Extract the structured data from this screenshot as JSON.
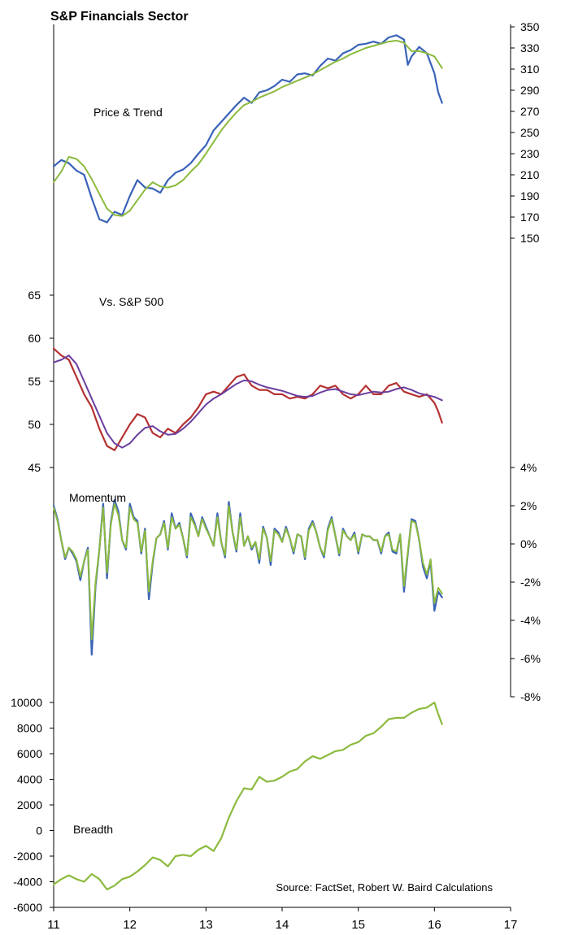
{
  "title": "S&P Financials Sector",
  "source": "Source: FactSet, Robert W. Baird Calculations",
  "colors": {
    "price": "#3a63b8",
    "price_trend": "#8cba3e",
    "relative": "#b53232",
    "relative_trend": "#6a3fa0",
    "momentum_fast": "#3a63b8",
    "momentum_slow": "#8cba3e",
    "breadth": "#8cba3e",
    "axis": "#000000"
  },
  "x_axis": {
    "ticks": [
      "11",
      "12",
      "13",
      "14",
      "15",
      "16",
      "17"
    ],
    "range": [
      11,
      17
    ]
  },
  "chart_data": [
    {
      "type": "line",
      "label": "Price & Trend",
      "y_axis_side": "right",
      "ylim": [
        150,
        350
      ],
      "yticks": [
        "150",
        "170",
        "190",
        "210",
        "230",
        "250",
        "270",
        "290",
        "310",
        "330",
        "350"
      ],
      "series": [
        {
          "role": "price",
          "x": [
            11.0,
            11.1,
            11.2,
            11.3,
            11.4,
            11.5,
            11.6,
            11.7,
            11.8,
            11.9,
            12.0,
            12.1,
            12.2,
            12.3,
            12.4,
            12.5,
            12.6,
            12.7,
            12.8,
            12.9,
            13.0,
            13.1,
            13.2,
            13.3,
            13.4,
            13.5,
            13.6,
            13.7,
            13.8,
            13.9,
            14.0,
            14.1,
            14.2,
            14.3,
            14.4,
            14.5,
            14.6,
            14.7,
            14.8,
            14.9,
            15.0,
            15.1,
            15.2,
            15.3,
            15.4,
            15.5,
            15.6,
            15.65,
            15.7,
            15.8,
            15.9,
            16.0,
            16.05,
            16.1
          ],
          "values": [
            218,
            224,
            221,
            214,
            210,
            188,
            168,
            165,
            175,
            172,
            190,
            205,
            198,
            197,
            193,
            205,
            212,
            215,
            221,
            230,
            238,
            252,
            260,
            268,
            276,
            283,
            278,
            288,
            290,
            294,
            300,
            298,
            305,
            306,
            304,
            313,
            320,
            318,
            325,
            328,
            333,
            334,
            336,
            334,
            340,
            342,
            338,
            314,
            322,
            331,
            325,
            306,
            288,
            278
          ]
        },
        {
          "role": "trend",
          "x": [
            11.0,
            11.1,
            11.2,
            11.3,
            11.4,
            11.5,
            11.6,
            11.7,
            11.8,
            11.9,
            12.0,
            12.1,
            12.2,
            12.3,
            12.4,
            12.5,
            12.6,
            12.7,
            12.8,
            12.9,
            13.0,
            13.1,
            13.2,
            13.3,
            13.4,
            13.5,
            13.6,
            13.7,
            13.8,
            13.9,
            14.0,
            14.1,
            14.2,
            14.3,
            14.4,
            14.5,
            14.6,
            14.7,
            14.8,
            14.9,
            15.0,
            15.1,
            15.2,
            15.3,
            15.4,
            15.5,
            15.6,
            15.7,
            15.8,
            15.9,
            16.0,
            16.1
          ],
          "values": [
            203,
            213,
            227,
            225,
            218,
            206,
            192,
            178,
            172,
            171,
            176,
            186,
            196,
            203,
            199,
            198,
            200,
            205,
            213,
            220,
            230,
            241,
            252,
            261,
            269,
            276,
            279,
            283,
            286,
            289,
            293,
            296,
            299,
            302,
            305,
            309,
            313,
            317,
            320,
            324,
            327,
            330,
            332,
            334,
            336,
            337,
            335,
            327,
            327,
            325,
            322,
            311
          ]
        }
      ]
    },
    {
      "type": "line",
      "label": "Vs. S&P 500",
      "y_axis_side": "left",
      "ylim": [
        45,
        65
      ],
      "yticks": [
        "45",
        "50",
        "55",
        "60",
        "65"
      ],
      "series": [
        {
          "role": "relative",
          "x": [
            11.0,
            11.1,
            11.2,
            11.3,
            11.4,
            11.5,
            11.6,
            11.7,
            11.8,
            11.9,
            12.0,
            12.1,
            12.2,
            12.3,
            12.4,
            12.5,
            12.6,
            12.7,
            12.8,
            12.9,
            13.0,
            13.1,
            13.2,
            13.3,
            13.4,
            13.5,
            13.6,
            13.7,
            13.8,
            13.9,
            14.0,
            14.1,
            14.2,
            14.3,
            14.4,
            14.5,
            14.6,
            14.7,
            14.8,
            14.9,
            15.0,
            15.1,
            15.2,
            15.3,
            15.4,
            15.5,
            15.6,
            15.7,
            15.8,
            15.9,
            16.0,
            16.05,
            16.1
          ],
          "values": [
            58.8,
            58.0,
            57.5,
            55.5,
            53.5,
            52.0,
            49.5,
            47.5,
            47.0,
            48.5,
            50.0,
            51.2,
            50.8,
            49.0,
            48.5,
            49.5,
            49.0,
            50.0,
            50.8,
            52.0,
            53.5,
            53.8,
            53.5,
            54.5,
            55.5,
            55.8,
            54.5,
            54.0,
            54.0,
            53.5,
            53.5,
            53.0,
            53.2,
            53.0,
            53.5,
            54.5,
            54.2,
            54.5,
            53.5,
            53.0,
            53.5,
            54.5,
            53.5,
            53.5,
            54.5,
            54.8,
            53.8,
            53.5,
            53.2,
            53.5,
            52.5,
            51.5,
            50.2
          ]
        },
        {
          "role": "trend",
          "x": [
            11.0,
            11.1,
            11.2,
            11.3,
            11.4,
            11.5,
            11.6,
            11.7,
            11.8,
            11.9,
            12.0,
            12.1,
            12.2,
            12.3,
            12.4,
            12.5,
            12.6,
            12.7,
            12.8,
            12.9,
            13.0,
            13.1,
            13.2,
            13.3,
            13.4,
            13.5,
            13.6,
            13.7,
            13.8,
            13.9,
            14.0,
            14.1,
            14.2,
            14.3,
            14.4,
            14.5,
            14.6,
            14.7,
            14.8,
            14.9,
            15.0,
            15.1,
            15.2,
            15.3,
            15.4,
            15.5,
            15.6,
            15.7,
            15.8,
            15.9,
            16.0,
            16.1
          ],
          "values": [
            57.2,
            57.5,
            58.0,
            57.0,
            55.0,
            53.0,
            51.0,
            49.0,
            47.8,
            47.3,
            47.8,
            48.8,
            49.6,
            49.8,
            49.2,
            48.8,
            48.9,
            49.5,
            50.3,
            51.3,
            52.3,
            53.0,
            53.5,
            54.1,
            54.7,
            55.1,
            55.0,
            54.6,
            54.3,
            54.1,
            53.9,
            53.6,
            53.3,
            53.2,
            53.3,
            53.7,
            54.0,
            54.1,
            53.8,
            53.5,
            53.4,
            53.6,
            53.8,
            53.7,
            53.8,
            54.1,
            54.3,
            54.0,
            53.6,
            53.4,
            53.2,
            52.8
          ]
        }
      ]
    },
    {
      "type": "line",
      "label": "Momentum",
      "y_axis_side": "right",
      "ylim": [
        -8,
        4
      ],
      "yticks": [
        "-8%",
        "-6%",
        "-4%",
        "-2%",
        "0%",
        "2%",
        "4%"
      ],
      "series": [
        {
          "role": "fast",
          "x": [
            11.0,
            11.05,
            11.1,
            11.15,
            11.2,
            11.25,
            11.3,
            11.35,
            11.4,
            11.45,
            11.5,
            11.55,
            11.6,
            11.65,
            11.7,
            11.75,
            11.8,
            11.85,
            11.9,
            11.95,
            12.0,
            12.05,
            12.1,
            12.15,
            12.2,
            12.25,
            12.3,
            12.35,
            12.4,
            12.45,
            12.5,
            12.55,
            12.6,
            12.65,
            12.7,
            12.75,
            12.8,
            12.85,
            12.9,
            12.95,
            13.0,
            13.05,
            13.1,
            13.15,
            13.2,
            13.25,
            13.3,
            13.35,
            13.4,
            13.45,
            13.5,
            13.55,
            13.6,
            13.65,
            13.7,
            13.75,
            13.8,
            13.85,
            13.9,
            13.95,
            14.0,
            14.05,
            14.1,
            14.15,
            14.2,
            14.25,
            14.3,
            14.35,
            14.4,
            14.45,
            14.5,
            14.55,
            14.6,
            14.65,
            14.7,
            14.75,
            14.8,
            14.85,
            14.9,
            14.95,
            15.0,
            15.05,
            15.1,
            15.15,
            15.2,
            15.25,
            15.3,
            15.35,
            15.4,
            15.45,
            15.5,
            15.55,
            15.6,
            15.65,
            15.7,
            15.75,
            15.8,
            15.85,
            15.9,
            15.95,
            16.0,
            16.05,
            16.1
          ],
          "values": [
            2.0,
            1.3,
            0.2,
            -0.8,
            -0.2,
            -0.5,
            -0.9,
            -1.9,
            -0.9,
            -0.2,
            -5.8,
            -2.2,
            -0.3,
            2.1,
            -1.8,
            1.1,
            2.3,
            1.7,
            0.2,
            -0.3,
            2.1,
            1.4,
            1.2,
            -0.5,
            0.8,
            -2.9,
            -1.0,
            0.3,
            0.5,
            1.2,
            -0.3,
            1.6,
            0.8,
            1.1,
            0.3,
            -0.7,
            1.6,
            1.1,
            0.4,
            1.4,
            0.9,
            0.4,
            -0.1,
            1.6,
            0.1,
            -0.7,
            2.2,
            0.6,
            -0.4,
            1.6,
            -0.1,
            0.4,
            -0.3,
            0.1,
            -1.0,
            0.9,
            0.3,
            -1.1,
            0.8,
            0.6,
            0.1,
            0.9,
            0.3,
            -0.5,
            0.5,
            0.4,
            -0.8,
            0.8,
            1.2,
            0.6,
            -0.2,
            -0.7,
            0.8,
            1.4,
            0.4,
            -0.6,
            0.8,
            0.4,
            0.2,
            0.6,
            -0.5,
            0.5,
            0.4,
            0.4,
            0.2,
            0.2,
            -0.5,
            0.4,
            0.6,
            -0.4,
            -0.5,
            0.5,
            -2.5,
            -0.5,
            1.3,
            1.2,
            0.2,
            -1.2,
            -1.8,
            -0.9,
            -3.5,
            -2.5,
            -2.8
          ]
        },
        {
          "role": "slow",
          "x": [
            11.0,
            11.05,
            11.1,
            11.15,
            11.2,
            11.25,
            11.3,
            11.35,
            11.4,
            11.45,
            11.5,
            11.55,
            11.6,
            11.65,
            11.7,
            11.75,
            11.8,
            11.85,
            11.9,
            11.95,
            12.0,
            12.05,
            12.1,
            12.15,
            12.2,
            12.25,
            12.3,
            12.35,
            12.4,
            12.45,
            12.5,
            12.55,
            12.6,
            12.65,
            12.7,
            12.75,
            12.8,
            12.85,
            12.9,
            12.95,
            13.0,
            13.05,
            13.1,
            13.15,
            13.2,
            13.25,
            13.3,
            13.35,
            13.4,
            13.45,
            13.5,
            13.55,
            13.6,
            13.65,
            13.7,
            13.75,
            13.8,
            13.85,
            13.9,
            13.95,
            14.0,
            14.05,
            14.1,
            14.15,
            14.2,
            14.25,
            14.3,
            14.35,
            14.4,
            14.45,
            14.5,
            14.55,
            14.6,
            14.65,
            14.7,
            14.75,
            14.8,
            14.85,
            14.9,
            14.95,
            15.0,
            15.05,
            15.1,
            15.15,
            15.2,
            15.25,
            15.3,
            15.35,
            15.4,
            15.45,
            15.5,
            15.55,
            15.6,
            15.65,
            15.7,
            15.75,
            15.8,
            15.85,
            15.9,
            15.95,
            16.0,
            16.05,
            16.1
          ],
          "values": [
            1.9,
            1.2,
            0.2,
            -0.7,
            -0.2,
            -0.4,
            -0.8,
            -1.7,
            -0.9,
            -0.3,
            -5.0,
            -2.0,
            -0.3,
            1.9,
            -1.5,
            1.0,
            2.1,
            1.5,
            0.2,
            -0.2,
            1.9,
            1.3,
            1.1,
            -0.4,
            0.7,
            -2.5,
            -0.9,
            0.3,
            0.5,
            1.1,
            -0.2,
            1.4,
            0.8,
            1.0,
            0.3,
            -0.6,
            1.4,
            1.0,
            0.4,
            1.3,
            0.8,
            0.4,
            -0.1,
            1.4,
            0.1,
            -0.6,
            2.0,
            0.6,
            -0.3,
            1.4,
            -0.1,
            0.4,
            -0.2,
            0.1,
            -0.8,
            0.8,
            0.3,
            -0.9,
            0.7,
            0.5,
            0.1,
            0.8,
            0.3,
            -0.4,
            0.5,
            0.4,
            -0.7,
            0.7,
            1.1,
            0.6,
            -0.2,
            -0.6,
            0.7,
            1.3,
            0.4,
            -0.5,
            0.7,
            0.4,
            0.2,
            0.5,
            -0.4,
            0.5,
            0.4,
            0.4,
            0.2,
            0.2,
            -0.4,
            0.4,
            0.5,
            -0.3,
            -0.4,
            0.5,
            -2.2,
            -0.4,
            1.2,
            1.1,
            0.2,
            -1.0,
            -1.6,
            -0.8,
            -3.1,
            -2.3,
            -2.6
          ]
        }
      ]
    },
    {
      "type": "line",
      "label": "Breadth",
      "y_axis_side": "left",
      "ylim": [
        -6000,
        10000
      ],
      "yticks": [
        "-6000",
        "-4000",
        "-2000",
        "0",
        "2000",
        "4000",
        "6000",
        "8000",
        "10000"
      ],
      "series": [
        {
          "role": "breadth",
          "x": [
            11.0,
            11.1,
            11.2,
            11.3,
            11.4,
            11.5,
            11.6,
            11.7,
            11.8,
            11.9,
            12.0,
            12.1,
            12.2,
            12.3,
            12.4,
            12.5,
            12.6,
            12.7,
            12.8,
            12.9,
            13.0,
            13.1,
            13.2,
            13.3,
            13.4,
            13.5,
            13.6,
            13.7,
            13.8,
            13.9,
            14.0,
            14.1,
            14.2,
            14.3,
            14.4,
            14.5,
            14.6,
            14.7,
            14.8,
            14.9,
            15.0,
            15.1,
            15.2,
            15.3,
            15.4,
            15.5,
            15.6,
            15.7,
            15.8,
            15.9,
            16.0,
            16.05,
            16.1
          ],
          "values": [
            -4200,
            -3800,
            -3500,
            -3800,
            -4000,
            -3400,
            -3800,
            -4600,
            -4300,
            -3800,
            -3600,
            -3200,
            -2700,
            -2100,
            -2300,
            -2800,
            -2000,
            -1900,
            -2000,
            -1500,
            -1200,
            -1600,
            -600,
            1000,
            2300,
            3300,
            3200,
            4200,
            3800,
            3900,
            4200,
            4600,
            4800,
            5400,
            5800,
            5600,
            5900,
            6200,
            6300,
            6700,
            6900,
            7400,
            7600,
            8100,
            8700,
            8800,
            8800,
            9200,
            9500,
            9600,
            10000,
            9100,
            8300
          ]
        }
      ]
    }
  ]
}
